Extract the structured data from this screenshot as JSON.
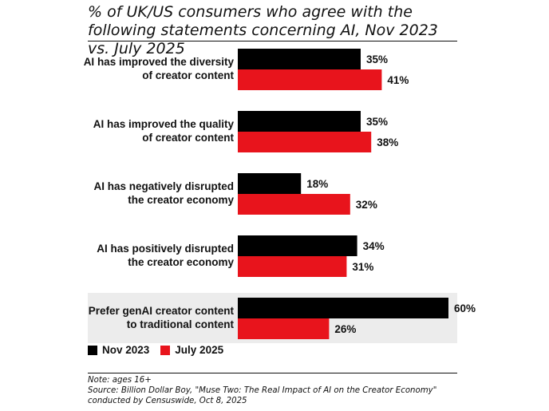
{
  "title": "% of UK/US consumers who agree with the following statements concerning AI, Nov 2023 vs. July 2025",
  "legend": {
    "nov_label": "Nov 2023",
    "jul_label": "July 2025"
  },
  "colors": {
    "nov": "#000000",
    "jul": "#e8141c",
    "highlight_bg": "#ececec"
  },
  "footer": {
    "note": "Note: ages 16+",
    "source_line1": "Source: Billion Dollar Boy, \"Muse Two: The Real Impact of AI on the Creator Economy\"",
    "source_line2": "conducted by Censuswide, Oct 8, 2025"
  },
  "chart_data": {
    "type": "bar",
    "orientation": "horizontal",
    "categories": [
      [
        "AI has improved the diversity",
        "of creator content"
      ],
      [
        "AI has improved the quality",
        "of creator content"
      ],
      [
        "AI has negatively disrupted",
        "the creator economy"
      ],
      [
        "AI has positively disrupted",
        "the creator economy"
      ],
      [
        "Prefer genAI creator content",
        "to traditional content"
      ]
    ],
    "highlighted_category_index": 4,
    "series": [
      {
        "name": "Nov 2023",
        "values": [
          35,
          35,
          18,
          34,
          60
        ],
        "labels": [
          "35%",
          "35%",
          "18%",
          "34%",
          "60%"
        ]
      },
      {
        "name": "July 2025",
        "values": [
          41,
          38,
          32,
          31,
          26
        ],
        "labels": [
          "41%",
          "38%",
          "32%",
          "31%",
          "26%"
        ]
      }
    ],
    "xlim": [
      0,
      60
    ],
    "grid": false,
    "legend_position": "bottom-left"
  }
}
